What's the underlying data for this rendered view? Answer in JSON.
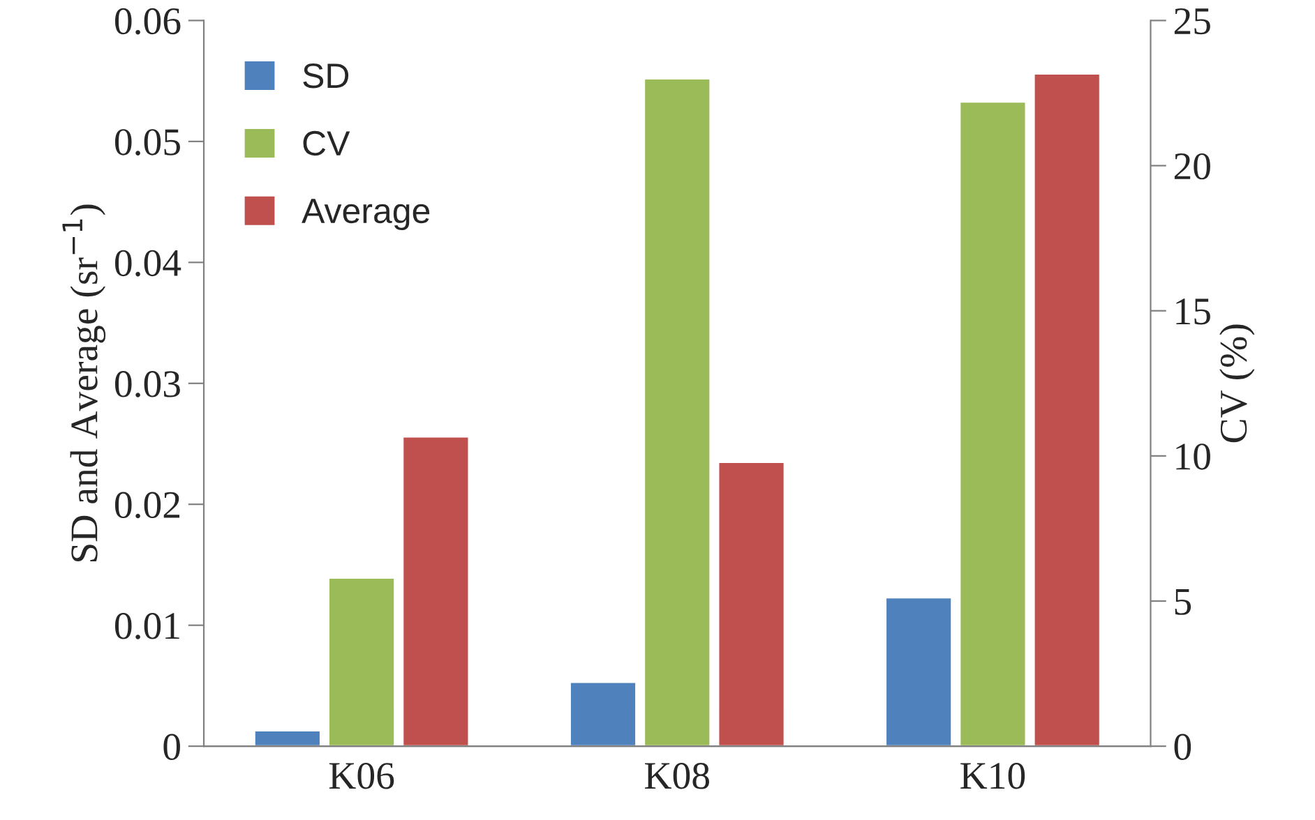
{
  "chart_data": {
    "type": "bar",
    "categories": [
      "K06",
      "K08",
      "K10"
    ],
    "ylabel": "SD and Average (sr$^{−1}$)",
    "y2label": "CV (%)",
    "ylim": [
      0,
      0.06
    ],
    "yticks": [
      {
        "value": 0,
        "label": "0"
      },
      0.01,
      0.02,
      0.03,
      0.04,
      0.05,
      0.06
    ],
    "y2lim": [
      0,
      25
    ],
    "y2ticks": [
      0,
      5,
      10,
      15,
      20,
      25
    ],
    "series": [
      {
        "name": "SD",
        "color": "#4f81bd",
        "values": [
          0.0013,
          0.0053,
          0.0123
        ]
      },
      {
        "name": "CV",
        "color": "#9bbb59",
        "values": [
          5.8,
          23.0,
          22.2
        ],
        "axis": "y2"
      },
      {
        "name": "Average",
        "color": "#c0504d",
        "values": [
          0.0256,
          0.0235,
          0.0556
        ]
      }
    ],
    "legend": "top left",
    "grid": false
  }
}
